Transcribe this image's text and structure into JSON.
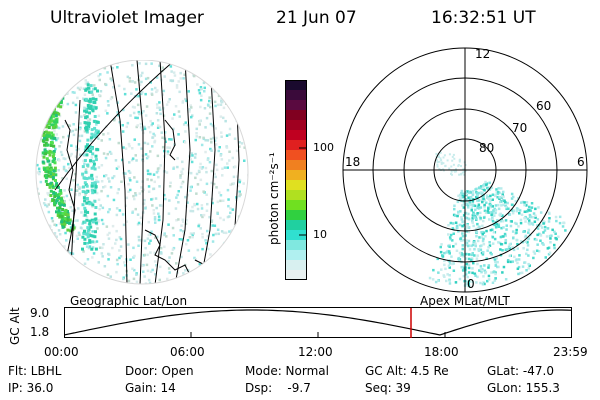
{
  "header": {
    "instrument": "Ultraviolet Imager",
    "date": "21 Jun 07",
    "time": "16:32:51 UT"
  },
  "colorbar": {
    "unit_label": "photon cm⁻²s⁻¹",
    "ticks": [
      "100",
      "10"
    ],
    "colors": [
      "#1a0a2e",
      "#3a0a3a",
      "#5a0a40",
      "#800020",
      "#a00020",
      "#c00020",
      "#e02020",
      "#f05020",
      "#f08020",
      "#f0b020",
      "#e0e020",
      "#b0e020",
      "#70e020",
      "#30d040",
      "#20d0a0",
      "#30e0d0",
      "#80e8e0",
      "#b0f0f0",
      "#d8f0f0",
      "#e8f0f0"
    ]
  },
  "polar": {
    "mlt_labels": {
      "top": "12",
      "left": "18",
      "right": "6",
      "bottom": "0"
    },
    "lat_labels": [
      "60",
      "70",
      "80"
    ]
  },
  "timeline": {
    "left_caption": "Geographic Lat/Lon",
    "right_caption": "Apex MLat/MLT",
    "yaxis_label": "GC Alt",
    "y_ticks": [
      "9.0",
      "1.8"
    ],
    "x_ticks": [
      "00:00",
      "06:00",
      "12:00",
      "18:00",
      "23:59"
    ],
    "marker_color": "#cc0000"
  },
  "status": {
    "flt": "Flt: LBHL",
    "ip": "IP: 36.0",
    "door": "Door: Open",
    "gain": "Gain: 14",
    "mode": "Mode: Normal",
    "dsp": "Dsp:    -9.7",
    "gcalt": "GC Alt: 4.5 Re",
    "seq": "Seq: 39",
    "glat": "GLat: -47.0",
    "glon": "GLon: 155.3"
  }
}
